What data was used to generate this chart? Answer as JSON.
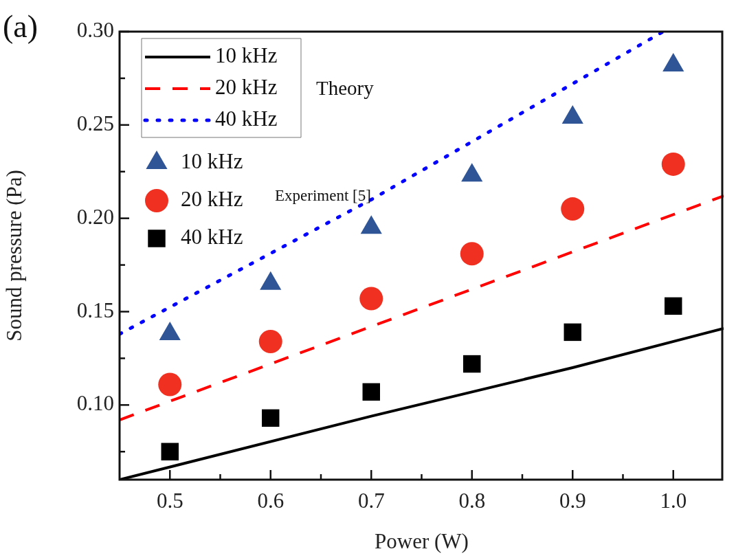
{
  "chart_data": {
    "type": "scatter",
    "xlabel": "Power (W)",
    "ylabel": "Sound pressure (Pa)",
    "annotations": [
      "(a)",
      "Theory",
      "Experiment [5]"
    ],
    "xlim": [
      0.45,
      1.05
    ],
    "ylim": [
      0.06,
      0.3
    ],
    "xticks": [
      {
        "value": 0.5,
        "label": "0.5"
      },
      {
        "value": 0.55,
        "label": null
      },
      {
        "value": 0.6,
        "label": "0.6"
      },
      {
        "value": 0.65,
        "label": null
      },
      {
        "value": 0.7,
        "label": "0.7"
      },
      {
        "value": 0.75,
        "label": null
      },
      {
        "value": 0.8,
        "label": "0.8"
      },
      {
        "value": 0.85,
        "label": null
      },
      {
        "value": 0.9,
        "label": "0.9"
      },
      {
        "value": 0.95,
        "label": null
      },
      {
        "value": 1,
        "label": "1.0"
      }
    ],
    "yticks": [
      {
        "value": 0.075,
        "label": null
      },
      {
        "value": 0.1,
        "label": "0.10"
      },
      {
        "value": 0.125,
        "label": null
      },
      {
        "value": 0.15,
        "label": "0.15"
      },
      {
        "value": 0.175,
        "label": null
      },
      {
        "value": 0.2,
        "label": "0.20"
      },
      {
        "value": 0.225,
        "label": null
      },
      {
        "value": 0.25,
        "label": "0.25"
      },
      {
        "value": 0.275,
        "label": null
      },
      {
        "value": 0.3,
        "label": "0.30"
      }
    ],
    "legend": "top left",
    "grid": false,
    "series": [
      {
        "type": "line",
        "name": "10 kHz",
        "color": "#000000",
        "line_style": "solid",
        "marker": "none",
        "x": [
          0.45,
          0.7,
          0.9,
          1.05
        ],
        "values": [
          0.06,
          0.094,
          0.12,
          0.141
        ]
      },
      {
        "type": "line",
        "name": "20 kHz",
        "color": "#ff0000",
        "line_style": "dashed",
        "marker": "none",
        "x": [
          0.45,
          0.7,
          1.05
        ],
        "values": [
          0.092,
          0.142,
          0.212
        ]
      },
      {
        "type": "line",
        "name": "40 kHz",
        "color": "#0000ff",
        "line_style": "dotted",
        "marker": "none",
        "x": [
          0.45,
          0.7,
          0.99
        ],
        "values": [
          0.138,
          0.21,
          0.3
        ]
      },
      {
        "type": "scatter",
        "name": "10 kHz",
        "color": "#2f5597",
        "marker": "triangle",
        "x": [
          0.5,
          0.6,
          0.7,
          0.8,
          0.9,
          1.0
        ],
        "values": [
          0.138,
          0.165,
          0.195,
          0.223,
          0.254,
          0.282
        ]
      },
      {
        "type": "scatter",
        "name": "20 kHz",
        "color": "#f03020",
        "marker": "circle",
        "x": [
          0.5,
          0.6,
          0.7,
          0.8,
          0.9,
          1.0
        ],
        "values": [
          0.111,
          0.134,
          0.157,
          0.181,
          0.205,
          0.229
        ]
      },
      {
        "type": "scatter",
        "name": "40 kHz",
        "color": "#000000",
        "marker": "square",
        "x": [
          0.5,
          0.6,
          0.7,
          0.8,
          0.9,
          1.0
        ],
        "values": [
          0.075,
          0.093,
          0.107,
          0.122,
          0.139,
          0.153
        ]
      }
    ]
  }
}
